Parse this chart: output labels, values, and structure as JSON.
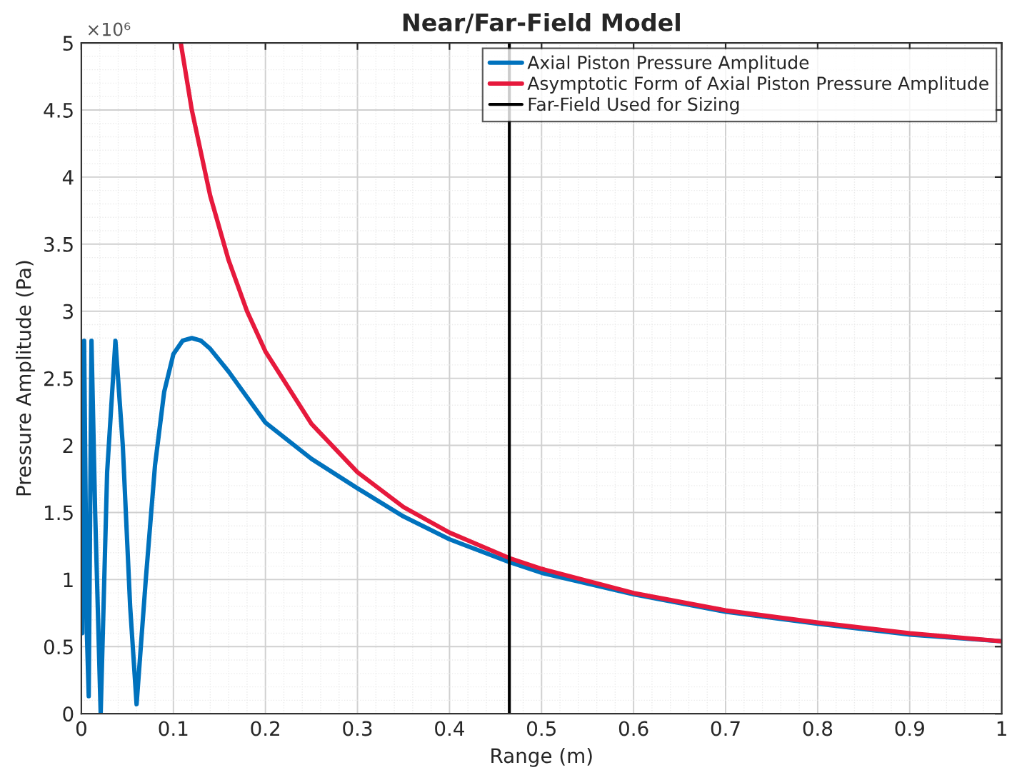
{
  "chart_data": {
    "type": "line",
    "title": "Near/Far-Field Model",
    "xlabel": "Range (m)",
    "ylabel": "Pressure Amplitude (Pa)",
    "annotations": [
      "×10⁶"
    ],
    "xlim": [
      0,
      1
    ],
    "xticks": [
      0,
      0.1,
      0.2,
      0.3,
      0.4,
      0.5,
      0.6,
      0.7,
      0.8,
      0.9,
      1
    ],
    "ylim": [
      0,
      5
    ],
    "yticks": [
      0,
      0.5,
      1,
      1.5,
      2,
      2.5,
      3,
      3.5,
      4,
      4.5,
      5
    ],
    "grid": true,
    "legend": "top right",
    "line_style": "solid",
    "series": [
      {
        "name": "Axial Piston Pressure Amplitude",
        "color": "#0072bd",
        "x": [
          0.001,
          0.003,
          0.006,
          0.008,
          0.011,
          0.015,
          0.021,
          0.028,
          0.037,
          0.045,
          0.053,
          0.06,
          0.07,
          0.08,
          0.09,
          0.1,
          0.11,
          0.12,
          0.13,
          0.14,
          0.16,
          0.18,
          0.2,
          0.25,
          0.3,
          0.35,
          0.4,
          0.465,
          0.5,
          0.6,
          0.7,
          0.8,
          0.9,
          1.0
        ],
        "values": [
          0.6,
          2.78,
          0.6,
          0.13,
          2.78,
          1.5,
          0.0,
          1.8,
          2.78,
          2.0,
          0.8,
          0.07,
          1.0,
          1.85,
          2.4,
          2.68,
          2.78,
          2.8,
          2.78,
          2.72,
          2.55,
          2.36,
          2.17,
          1.9,
          1.68,
          1.47,
          1.3,
          1.13,
          1.05,
          0.89,
          0.76,
          0.67,
          0.59,
          0.54
        ]
      },
      {
        "name": "Asymptotic Form of Axial Piston Pressure Amplitude",
        "color": "#e6193c",
        "x": [
          0.108,
          0.12,
          0.14,
          0.16,
          0.18,
          0.2,
          0.25,
          0.3,
          0.35,
          0.4,
          0.465,
          0.5,
          0.6,
          0.7,
          0.8,
          0.9,
          1.0
        ],
        "values": [
          5.0,
          4.5,
          3.86,
          3.38,
          3.0,
          2.7,
          2.16,
          1.8,
          1.54,
          1.35,
          1.16,
          1.08,
          0.9,
          0.77,
          0.68,
          0.6,
          0.54
        ]
      }
    ],
    "ref_lines": [
      {
        "axis": "x",
        "value": 0.465,
        "label": "Far-Field Used for Sizing",
        "color": "#000000",
        "line_style": "solid"
      }
    ]
  }
}
